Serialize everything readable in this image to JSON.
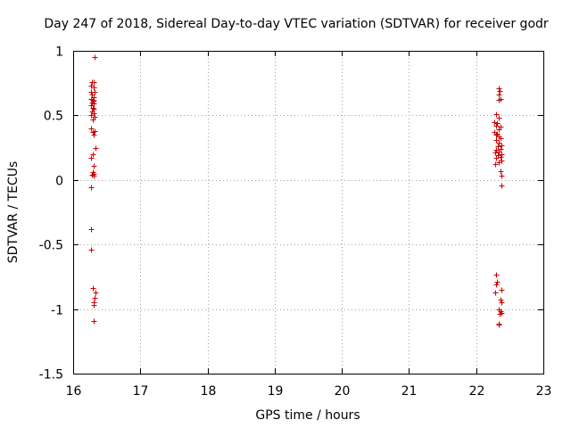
{
  "chart_data": {
    "type": "scatter",
    "title": "Day 247 of 2018, Sidereal Day-to-day VTEC variation (SDTVAR) for receiver godr",
    "xlabel": "GPS time / hours",
    "ylabel": "SDTVAR / TECUs",
    "xlim": [
      16,
      23
    ],
    "ylim": [
      -1.5,
      1
    ],
    "xticks": [
      "16",
      "17",
      "18",
      "19",
      "20",
      "21",
      "22",
      "23"
    ],
    "yticks": [
      "1",
      "0.5",
      "0",
      "-0.5",
      "-1",
      "-1.5"
    ],
    "grid": true,
    "marker": "+",
    "color": "#cc0000",
    "series": [
      {
        "name": "SDTVAR",
        "points": [
          [
            16.32,
            0.95
          ],
          [
            16.28,
            0.76
          ],
          [
            16.31,
            0.76
          ],
          [
            16.27,
            0.73
          ],
          [
            16.3,
            0.72
          ],
          [
            16.26,
            0.68
          ],
          [
            16.32,
            0.68
          ],
          [
            16.28,
            0.66
          ],
          [
            16.3,
            0.64
          ],
          [
            16.27,
            0.63
          ],
          [
            16.29,
            0.62
          ],
          [
            16.31,
            0.61
          ],
          [
            16.28,
            0.6
          ],
          [
            16.3,
            0.59
          ],
          [
            16.26,
            0.58
          ],
          [
            16.29,
            0.56
          ],
          [
            16.31,
            0.55
          ],
          [
            16.28,
            0.53
          ],
          [
            16.3,
            0.52
          ],
          [
            16.27,
            0.5
          ],
          [
            16.32,
            0.49
          ],
          [
            16.29,
            0.47
          ],
          [
            16.27,
            0.4
          ],
          [
            16.32,
            0.38
          ],
          [
            16.29,
            0.37
          ],
          [
            16.3,
            0.35
          ],
          [
            16.33,
            0.25
          ],
          [
            16.29,
            0.2
          ],
          [
            16.26,
            0.17
          ],
          [
            16.3,
            0.11
          ],
          [
            16.29,
            0.06
          ],
          [
            16.31,
            0.05
          ],
          [
            16.28,
            0.04
          ],
          [
            16.3,
            0.03
          ],
          [
            16.27,
            -0.06
          ],
          [
            16.26,
            -0.38
          ],
          [
            16.27,
            -0.54
          ],
          [
            16.29,
            -0.84
          ],
          [
            16.33,
            -0.87
          ],
          [
            16.32,
            -0.91
          ],
          [
            16.31,
            -0.95
          ],
          [
            16.3,
            -0.97
          ],
          [
            16.31,
            -1.09
          ],
          [
            22.33,
            0.71
          ],
          [
            22.35,
            0.69
          ],
          [
            22.34,
            0.66
          ],
          [
            22.36,
            0.63
          ],
          [
            22.33,
            0.62
          ],
          [
            22.3,
            0.51
          ],
          [
            22.33,
            0.48
          ],
          [
            22.27,
            0.45
          ],
          [
            22.31,
            0.44
          ],
          [
            22.29,
            0.42
          ],
          [
            22.36,
            0.41
          ],
          [
            22.34,
            0.39
          ],
          [
            22.27,
            0.37
          ],
          [
            22.31,
            0.36
          ],
          [
            22.29,
            0.35
          ],
          [
            22.33,
            0.34
          ],
          [
            22.36,
            0.32
          ],
          [
            22.3,
            0.31
          ],
          [
            22.34,
            0.29
          ],
          [
            22.38,
            0.27
          ],
          [
            22.32,
            0.26
          ],
          [
            22.36,
            0.24
          ],
          [
            22.3,
            0.23
          ],
          [
            22.34,
            0.22
          ],
          [
            22.28,
            0.21
          ],
          [
            22.38,
            0.2
          ],
          [
            22.32,
            0.19
          ],
          [
            22.36,
            0.18
          ],
          [
            22.3,
            0.17
          ],
          [
            22.38,
            0.15
          ],
          [
            22.34,
            0.14
          ],
          [
            22.28,
            0.12
          ],
          [
            22.36,
            0.07
          ],
          [
            22.38,
            0.03
          ],
          [
            22.38,
            -0.04
          ],
          [
            22.29,
            -0.73
          ],
          [
            22.31,
            -0.79
          ],
          [
            22.3,
            -0.81
          ],
          [
            22.28,
            -0.87
          ],
          [
            22.37,
            -0.85
          ],
          [
            22.36,
            -0.93
          ],
          [
            22.38,
            -0.95
          ],
          [
            22.34,
            -1.0
          ],
          [
            22.36,
            -1.02
          ],
          [
            22.38,
            -1.03
          ],
          [
            22.35,
            -1.04
          ],
          [
            22.33,
            -1.11
          ],
          [
            22.34,
            -1.12
          ]
        ]
      }
    ]
  }
}
